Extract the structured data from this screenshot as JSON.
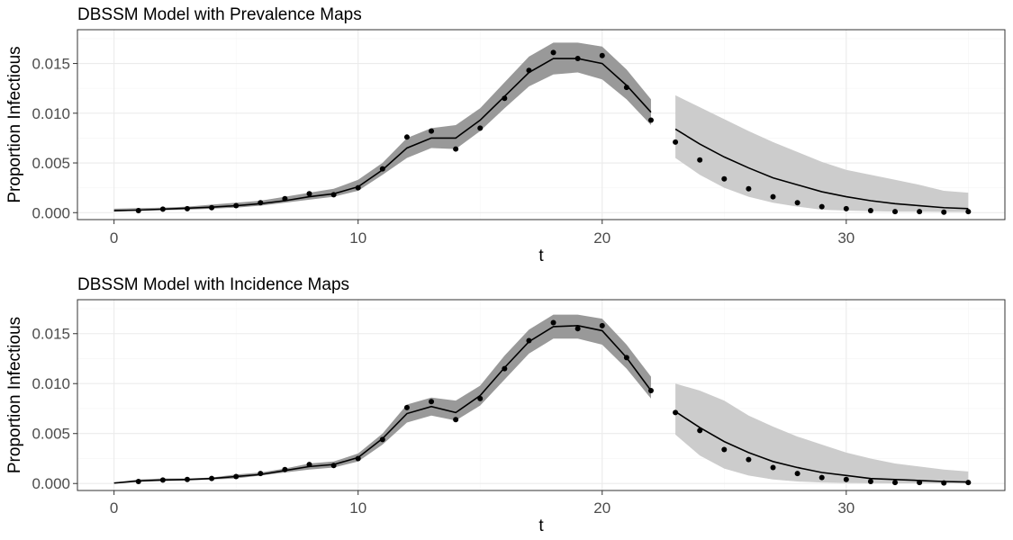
{
  "chart_data": [
    {
      "type": "line",
      "title": "DBSSM Model with Prevalence Maps",
      "xlabel": "t",
      "ylabel": "Proportion Infectious",
      "xlim": [
        -1.5,
        36.5
      ],
      "ylim": [
        -0.0007,
        0.0184
      ],
      "x_ticks": [
        0,
        10,
        20,
        30
      ],
      "y_ticks": [
        0.0,
        0.005,
        0.01,
        0.015
      ],
      "y_tick_labels": [
        "0.000",
        "0.005",
        "0.010",
        "0.015"
      ],
      "grid": true,
      "legend": "none",
      "colors": {
        "fit_band": "#999999",
        "forecast_band": "#cccccc",
        "line": "#000000",
        "points": "#000000"
      },
      "observed": {
        "x": [
          1,
          2,
          3,
          4,
          5,
          6,
          7,
          8,
          9,
          10,
          11,
          12,
          13,
          14,
          15,
          16,
          17,
          18,
          19,
          20,
          21,
          22,
          23,
          24,
          25,
          26,
          27,
          28,
          29,
          30,
          31,
          32,
          33,
          34,
          35
        ],
        "y": [
          0.0002,
          0.00035,
          0.0004,
          0.0005,
          0.0007,
          0.001,
          0.0014,
          0.0019,
          0.0018,
          0.0025,
          0.0044,
          0.0076,
          0.0082,
          0.0064,
          0.0085,
          0.0115,
          0.0143,
          0.0161,
          0.0155,
          0.0158,
          0.0126,
          0.0093,
          0.0071,
          0.0053,
          0.0034,
          0.0024,
          0.0016,
          0.001,
          0.0006,
          0.0004,
          0.0002,
          0.0001,
          0.0001,
          5e-05,
          0.0001
        ]
      },
      "fit": {
        "x": [
          0,
          1,
          2,
          3,
          4,
          5,
          6,
          7,
          8,
          9,
          10,
          11,
          12,
          13,
          14,
          15,
          16,
          17,
          18,
          19,
          20,
          21,
          22
        ],
        "mean": [
          0.0002,
          0.00025,
          0.00035,
          0.00045,
          0.00055,
          0.0007,
          0.0009,
          0.0012,
          0.0016,
          0.0019,
          0.0026,
          0.0043,
          0.0065,
          0.0075,
          0.0075,
          0.0093,
          0.0117,
          0.0141,
          0.0155,
          0.0155,
          0.015,
          0.0128,
          0.0101
        ],
        "lower": [
          0.0001,
          0.0002,
          0.00025,
          0.0003,
          0.0004,
          0.0005,
          0.0007,
          0.001,
          0.0013,
          0.0016,
          0.0022,
          0.0038,
          0.0055,
          0.0065,
          0.0064,
          0.0082,
          0.0105,
          0.0127,
          0.0139,
          0.0141,
          0.0134,
          0.0114,
          0.0088
        ],
        "upper": [
          0.0004,
          0.00045,
          0.0005,
          0.0006,
          0.0008,
          0.001,
          0.0012,
          0.0016,
          0.002,
          0.0024,
          0.0033,
          0.005,
          0.0075,
          0.0085,
          0.0088,
          0.0105,
          0.0131,
          0.0157,
          0.0171,
          0.0171,
          0.0167,
          0.0144,
          0.0114
        ]
      },
      "forecast": {
        "x": [
          23,
          24,
          25,
          26,
          27,
          28,
          29,
          30,
          31,
          32,
          33,
          34,
          35
        ],
        "mean": [
          0.0084,
          0.0069,
          0.0056,
          0.0045,
          0.0035,
          0.0028,
          0.0021,
          0.0016,
          0.0012,
          0.0009,
          0.0007,
          0.0005,
          0.0004
        ],
        "lower": [
          0.0055,
          0.0038,
          0.0025,
          0.0016,
          0.001,
          0.0006,
          0.0003,
          0.0002,
          0.00015,
          0.0001,
          0.0001,
          8e-05,
          8e-05
        ],
        "upper": [
          0.0118,
          0.0106,
          0.0094,
          0.0082,
          0.0071,
          0.0061,
          0.0051,
          0.0043,
          0.0038,
          0.0033,
          0.0028,
          0.0022,
          0.002
        ]
      }
    },
    {
      "type": "line",
      "title": "DBSSM Model with Incidence Maps",
      "xlabel": "t",
      "ylabel": "Proportion Infectious",
      "xlim": [
        -1.5,
        36.5
      ],
      "ylim": [
        -0.0007,
        0.0184
      ],
      "x_ticks": [
        0,
        10,
        20,
        30
      ],
      "y_ticks": [
        0.0,
        0.005,
        0.01,
        0.015
      ],
      "y_tick_labels": [
        "0.000",
        "0.005",
        "0.010",
        "0.015"
      ],
      "grid": true,
      "legend": "none",
      "colors": {
        "fit_band": "#999999",
        "forecast_band": "#cccccc",
        "line": "#000000",
        "points": "#000000"
      },
      "observed": {
        "x": [
          1,
          2,
          3,
          4,
          5,
          6,
          7,
          8,
          9,
          10,
          11,
          12,
          13,
          14,
          15,
          16,
          17,
          18,
          19,
          20,
          21,
          22,
          23,
          24,
          25,
          26,
          27,
          28,
          29,
          30,
          31,
          32,
          33,
          34,
          35
        ],
        "y": [
          0.0002,
          0.00035,
          0.0004,
          0.0005,
          0.0007,
          0.001,
          0.0014,
          0.0019,
          0.0018,
          0.0025,
          0.0044,
          0.0076,
          0.0082,
          0.0064,
          0.0085,
          0.0115,
          0.0143,
          0.0161,
          0.0155,
          0.0158,
          0.0126,
          0.0093,
          0.0071,
          0.0053,
          0.0034,
          0.0024,
          0.0016,
          0.001,
          0.0006,
          0.0004,
          0.0002,
          0.0001,
          0.0001,
          5e-05,
          0.0001
        ]
      },
      "fit": {
        "x": [
          0,
          1,
          2,
          3,
          4,
          5,
          6,
          7,
          8,
          9,
          10,
          11,
          12,
          13,
          14,
          15,
          16,
          17,
          18,
          19,
          20,
          21,
          22
        ],
        "mean": [
          5e-05,
          0.00025,
          0.00035,
          0.0004,
          0.0005,
          0.0007,
          0.0009,
          0.0013,
          0.0017,
          0.0019,
          0.0026,
          0.0045,
          0.007,
          0.0077,
          0.0071,
          0.0088,
          0.0116,
          0.0142,
          0.0157,
          0.0158,
          0.0153,
          0.0126,
          0.0093
        ],
        "lower": [
          2e-05,
          0.0002,
          0.00025,
          0.0003,
          0.0004,
          0.0005,
          0.0008,
          0.0011,
          0.0014,
          0.0016,
          0.0022,
          0.0039,
          0.0061,
          0.0068,
          0.0063,
          0.0078,
          0.0104,
          0.013,
          0.0145,
          0.0145,
          0.0139,
          0.0115,
          0.0085
        ],
        "upper": [
          0.0001,
          0.0004,
          0.0005,
          0.0005,
          0.0006,
          0.0009,
          0.0011,
          0.0015,
          0.002,
          0.0022,
          0.003,
          0.005,
          0.0079,
          0.0086,
          0.0083,
          0.0098,
          0.0128,
          0.0154,
          0.0169,
          0.0169,
          0.0165,
          0.0139,
          0.0107
        ]
      },
      "forecast": {
        "x": [
          23,
          24,
          25,
          26,
          27,
          28,
          29,
          30,
          31,
          32,
          33,
          34,
          35
        ],
        "mean": [
          0.0072,
          0.0056,
          0.0042,
          0.0031,
          0.0022,
          0.0016,
          0.0011,
          0.0008,
          0.0005,
          0.0004,
          0.0003,
          0.0002,
          0.00015
        ],
        "lower": [
          0.0049,
          0.0028,
          0.0015,
          0.0008,
          0.0004,
          0.0002,
          0.0001,
          5e-05,
          3e-05,
          2e-05,
          2e-05,
          1e-05,
          1e-05
        ],
        "upper": [
          0.01,
          0.0093,
          0.0083,
          0.0068,
          0.0057,
          0.0047,
          0.0039,
          0.0031,
          0.0025,
          0.002,
          0.0017,
          0.0014,
          0.0012
        ]
      }
    }
  ]
}
